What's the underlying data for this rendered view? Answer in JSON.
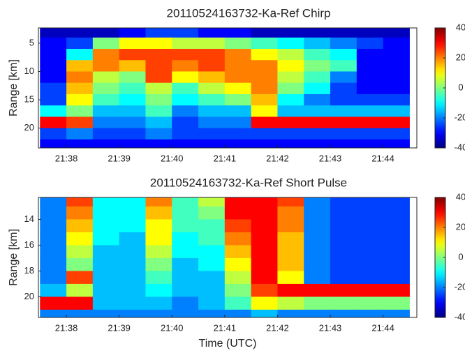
{
  "chart_data": [
    {
      "type": "heatmap",
      "title": "20110524163732-Ka-Ref Chirp",
      "ylabel": "Range [km]",
      "colormap": "jet",
      "x": [
        37.75,
        38.25,
        38.75,
        39.25,
        39.75,
        40.25,
        40.75,
        41.25,
        41.75,
        42.25,
        42.75,
        43.25,
        43.75,
        44.25
      ],
      "y": [
        3,
        5,
        7,
        9,
        11,
        13,
        15,
        17,
        19,
        21,
        23
      ],
      "values": [
        [
          -35,
          -35,
          -35,
          -30,
          -25,
          -25,
          -30,
          -30,
          -35,
          -35,
          -35,
          -35,
          -35,
          -35
        ],
        [
          -30,
          -25,
          0,
          10,
          10,
          5,
          5,
          0,
          -5,
          -10,
          -15,
          -20,
          -25,
          -30
        ],
        [
          -30,
          -10,
          20,
          25,
          25,
          25,
          25,
          20,
          10,
          5,
          -5,
          -10,
          -30,
          -30
        ],
        [
          -30,
          15,
          20,
          15,
          25,
          20,
          25,
          20,
          20,
          10,
          0,
          -5,
          -30,
          -30
        ],
        [
          -30,
          20,
          5,
          0,
          25,
          10,
          15,
          20,
          20,
          5,
          -5,
          -20,
          -30,
          -30
        ],
        [
          -25,
          15,
          0,
          -5,
          5,
          -5,
          5,
          10,
          20,
          0,
          -10,
          -25,
          -30,
          -30
        ],
        [
          -25,
          10,
          -5,
          -10,
          0,
          -10,
          -5,
          0,
          15,
          -10,
          -20,
          -25,
          -25,
          -25
        ],
        [
          -10,
          0,
          -15,
          -15,
          -5,
          -20,
          -15,
          -15,
          10,
          -15,
          -15,
          -15,
          -15,
          -15
        ],
        [
          30,
          25,
          -20,
          -20,
          -15,
          -25,
          -20,
          -20,
          30,
          30,
          30,
          30,
          30,
          30
        ],
        [
          -25,
          -20,
          -25,
          -25,
          -20,
          -25,
          -25,
          -25,
          -25,
          -25,
          -25,
          -25,
          -25,
          -25
        ],
        [
          -30,
          -30,
          -30,
          -30,
          -30,
          -30,
          -30,
          -30,
          -30,
          -30,
          -30,
          -30,
          -30,
          -30
        ]
      ],
      "xlim": [
        37.47,
        44.64
      ],
      "xticks": [
        {
          "value": 38,
          "label": "21:38"
        },
        {
          "value": 39,
          "label": "21:39"
        },
        {
          "value": 40,
          "label": "21:40"
        },
        {
          "value": 41,
          "label": "21:41"
        },
        {
          "value": 42,
          "label": "21:42"
        },
        {
          "value": 43,
          "label": "21:43"
        },
        {
          "value": 44,
          "label": "21:44"
        }
      ],
      "ylim": [
        23.5,
        2.3
      ],
      "yticks": [
        5,
        10,
        15,
        20
      ],
      "clim": [
        -40,
        40
      ],
      "cticks": [
        -40,
        -20,
        0,
        20,
        40
      ]
    },
    {
      "type": "heatmap",
      "title": "20110524163732-Ka-Ref Short Pulse",
      "xlabel": "Time (UTC)",
      "ylabel": "Range [km]",
      "colormap": "jet",
      "x": [
        37.75,
        38.25,
        38.75,
        39.25,
        39.75,
        40.25,
        40.75,
        41.25,
        41.75,
        42.25,
        42.75,
        43.25,
        43.75,
        44.25
      ],
      "y": [
        12.5,
        13.5,
        14.5,
        15.5,
        16.5,
        17.5,
        18.5,
        19.5,
        20.5,
        21.5
      ],
      "values": [
        [
          -20,
          25,
          -10,
          -10,
          20,
          -5,
          5,
          30,
          30,
          25,
          -20,
          -25,
          -25,
          -25
        ],
        [
          -20,
          20,
          -10,
          -10,
          15,
          -5,
          0,
          30,
          30,
          20,
          -20,
          -25,
          -25,
          -25
        ],
        [
          -20,
          15,
          -10,
          -10,
          10,
          -5,
          -5,
          25,
          30,
          20,
          -20,
          -25,
          -25,
          -25
        ],
        [
          -20,
          10,
          -10,
          -15,
          10,
          -10,
          -5,
          20,
          30,
          15,
          -20,
          -25,
          -25,
          -25
        ],
        [
          -20,
          5,
          -15,
          -15,
          5,
          -10,
          -10,
          15,
          30,
          15,
          -20,
          -25,
          -25,
          -25
        ],
        [
          -20,
          0,
          -15,
          -15,
          0,
          -15,
          -10,
          10,
          30,
          15,
          -20,
          -25,
          -25,
          -25
        ],
        [
          -20,
          25,
          -15,
          -15,
          -5,
          -15,
          -15,
          5,
          30,
          10,
          -20,
          -25,
          -25,
          -25
        ],
        [
          -15,
          5,
          -15,
          -15,
          -10,
          -15,
          -15,
          0,
          25,
          30,
          30,
          30,
          30,
          30
        ],
        [
          30,
          30,
          -15,
          -15,
          -15,
          -20,
          -15,
          -5,
          10,
          5,
          0,
          0,
          0,
          0
        ],
        [
          -20,
          -20,
          -20,
          -20,
          -20,
          -20,
          -20,
          -20,
          -15,
          -20,
          -20,
          -20,
          -20,
          -20
        ]
      ],
      "xlim": [
        37.47,
        44.64
      ],
      "xticks": [
        {
          "value": 38,
          "label": "21:38"
        },
        {
          "value": 39,
          "label": "21:39"
        },
        {
          "value": 40,
          "label": "21:40"
        },
        {
          "value": 41,
          "label": "21:41"
        },
        {
          "value": 42,
          "label": "21:42"
        },
        {
          "value": 43,
          "label": "21:43"
        },
        {
          "value": 44,
          "label": "21:44"
        }
      ],
      "ylim": [
        21.6,
        12.3
      ],
      "yticks": [
        14,
        16,
        18,
        20
      ],
      "clim": [
        -40,
        40
      ],
      "cticks": [
        -40,
        -20,
        0,
        20,
        40
      ]
    }
  ]
}
